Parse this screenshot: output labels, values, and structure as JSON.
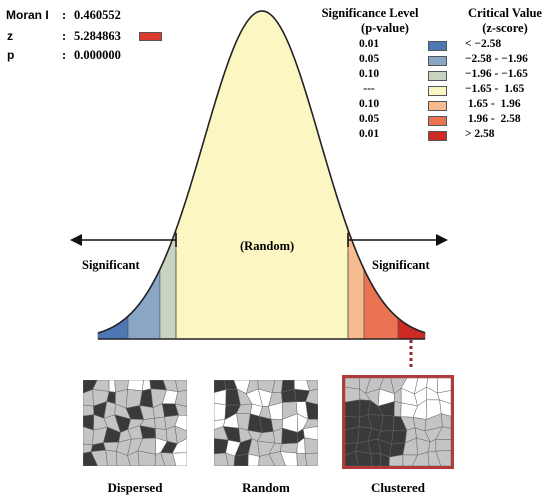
{
  "stats": [
    {
      "label": "Moran I",
      "value": "0.460552"
    },
    {
      "label": "z",
      "value": "5.284863"
    },
    {
      "label": "p",
      "value": "0.000000"
    }
  ],
  "z_badge_color": "#d93a2b",
  "legend": {
    "p_header_line1": "Significance Level",
    "p_header_line2": "(p-value)",
    "z_header_line1": "Critical Value",
    "z_header_line2": "(z-score)",
    "rows": [
      {
        "p": "0.01",
        "z": "< −2.58",
        "color": "#4d77b5"
      },
      {
        "p": "0.05",
        "z": "−2.58 - −1.96",
        "color": "#8aa6c7"
      },
      {
        "p": "0.10",
        "z": "−1.96 - −1.65",
        "color": "#c9d3c2"
      },
      {
        "p": "---",
        "z": "−1.65 -  1.65",
        "color": "#fbf6c2"
      },
      {
        "p": "0.10",
        "z": " 1.65 -  1.96",
        "color": "#f6bb8e"
      },
      {
        "p": "0.05",
        "z": " 1.96 -  2.58",
        "color": "#ec7352"
      },
      {
        "p": "0.01",
        "z": "> 2.58",
        "color": "#cc2a24"
      }
    ]
  },
  "curve": {
    "center_label": "(Random)",
    "left_label": "Significant",
    "right_label": "Significant"
  },
  "maps": [
    {
      "caption": "Dispersed"
    },
    {
      "caption": "Random"
    },
    {
      "caption": "Clustered"
    }
  ]
}
